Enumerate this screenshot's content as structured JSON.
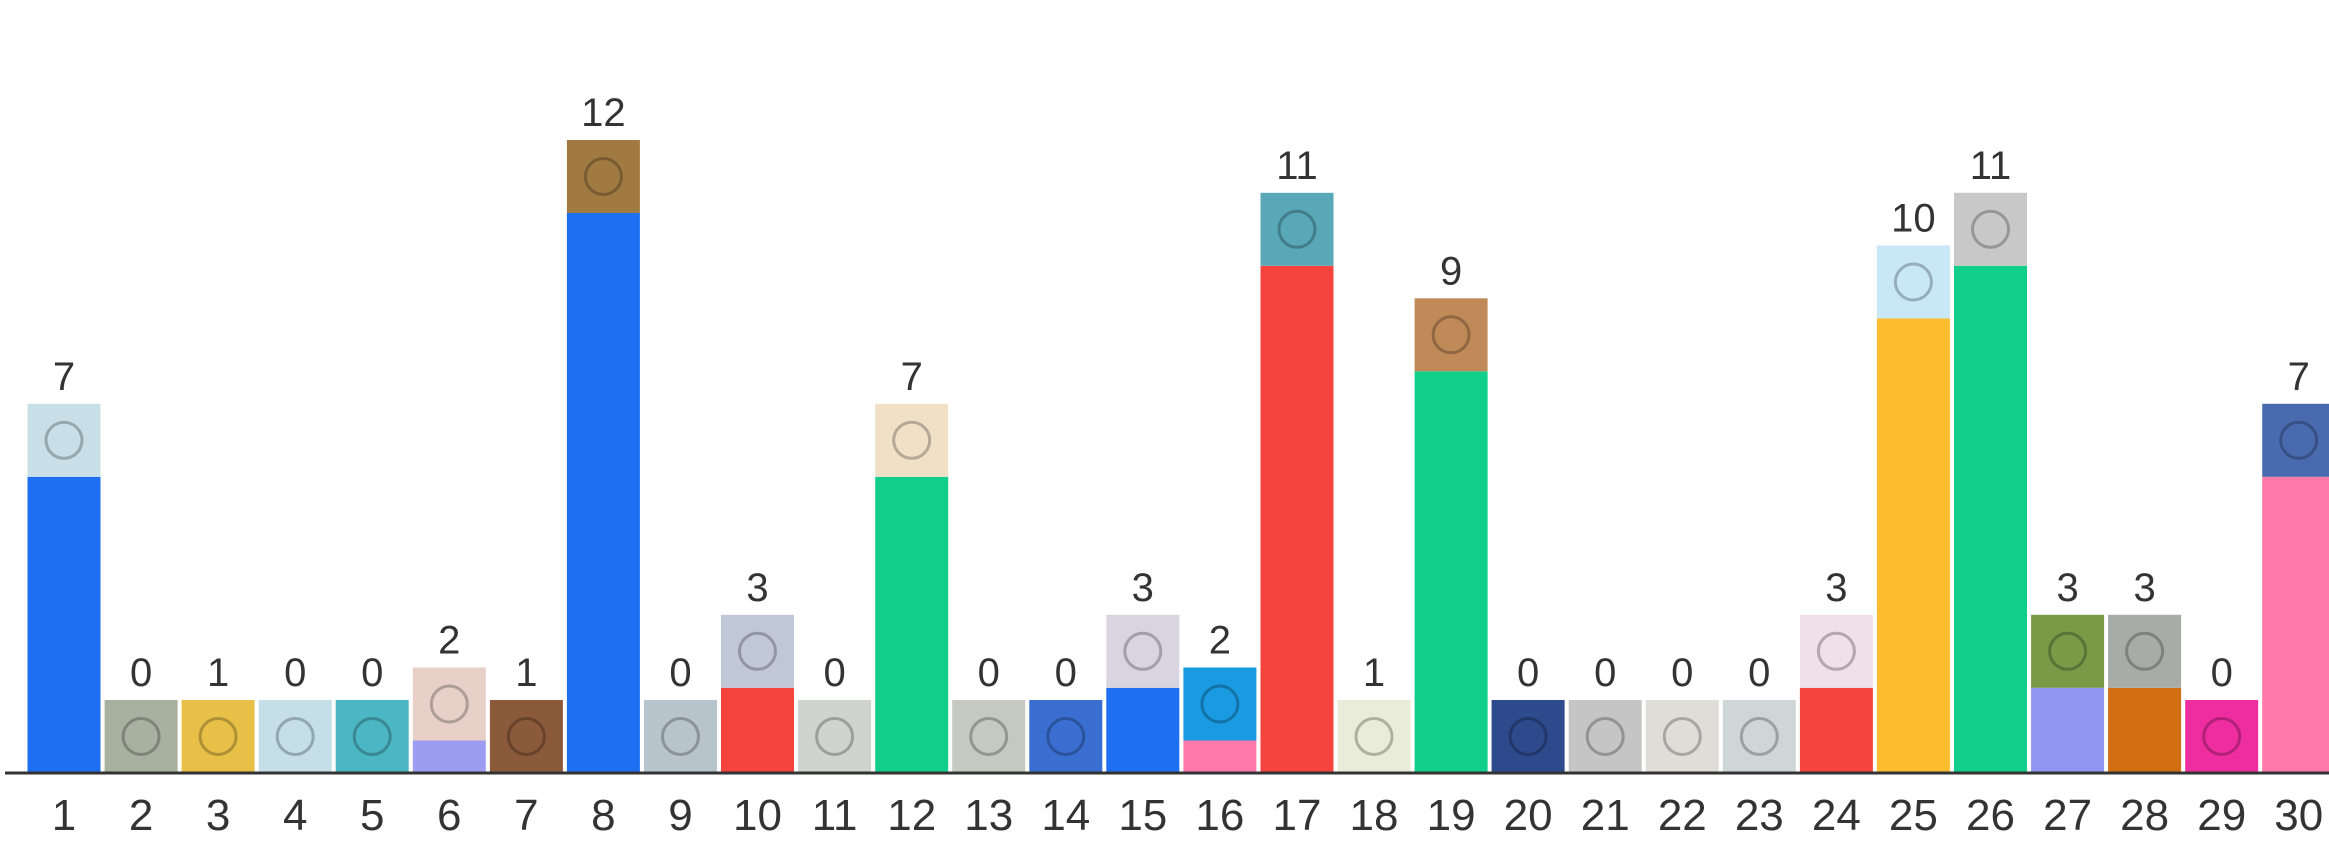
{
  "chart_data": {
    "type": "bar",
    "title": "",
    "xlabel": "",
    "ylabel": "",
    "categories": [
      "1",
      "2",
      "3",
      "4",
      "5",
      "6",
      "7",
      "8",
      "9",
      "10",
      "11",
      "12",
      "13",
      "14",
      "15",
      "16",
      "17",
      "18",
      "19",
      "20",
      "21",
      "22",
      "23",
      "24",
      "25",
      "26",
      "27",
      "28",
      "29",
      "30"
    ],
    "values": [
      7,
      0,
      1,
      0,
      0,
      2,
      1,
      12,
      0,
      3,
      0,
      7,
      0,
      0,
      3,
      2,
      11,
      1,
      9,
      0,
      0,
      0,
      0,
      3,
      10,
      11,
      3,
      3,
      0,
      7
    ],
    "value_labels": [
      "7",
      "0",
      "1",
      "0",
      "0",
      "2",
      "1",
      "12",
      "0",
      "3",
      "0",
      "7",
      "0",
      "0",
      "3",
      "2",
      "11",
      "1",
      "9",
      "0",
      "0",
      "0",
      "0",
      "3",
      "10",
      "11",
      "3",
      "3",
      "0",
      "7"
    ],
    "bar_colors": [
      "#1f6ff2",
      "#c7d6ee",
      "#f5433d",
      "#c5dfe8",
      "#4bb7c4",
      "#9c9cf0",
      "#d26f12",
      "#1f6ff2",
      "#b8c4cc",
      "#f5433d",
      "#d0d4d0",
      "#11cf8a",
      "#c5c9c0",
      "#3a6ed0",
      "#1f6ff2",
      "#ff7aa8",
      "#f5433d",
      "#fbbd2e",
      "#11cf8a",
      "#2d4a8c",
      "#c5c5c5",
      "#e0dcd8",
      "#cfd6d8",
      "#f5433d",
      "#fbbd2e",
      "#11cf8a",
      "#8f97f2",
      "#d26f12",
      "#ee2da0",
      "#ff7aa8"
    ],
    "thumb_colors": [
      "#c8dfe8",
      "#a8b0a0",
      "#e8c048",
      "#c5dfe8",
      "#4bb7c4",
      "#e8d0c8",
      "#8a5a3a",
      "#a07a40",
      "#b8c4cc",
      "#c0c8d8",
      "#d0d4d0",
      "#f0e0c8",
      "#c5c9c0",
      "#3a6ed0",
      "#d8d4e0",
      "#1a9ae0",
      "#58a8b8",
      "#e8ecd8",
      "#c08a58",
      "#2d4a8c",
      "#c5c5c5",
      "#e0dcd8",
      "#cfd6d8",
      "#f0e0e8",
      "#c8e8f8",
      "#c8c8c8",
      "#7a9a48",
      "#a8aca8",
      "#ee2da0",
      "#4a6ab0"
    ],
    "ylim": [
      0,
      12
    ],
    "grid": false,
    "legend": "none"
  }
}
